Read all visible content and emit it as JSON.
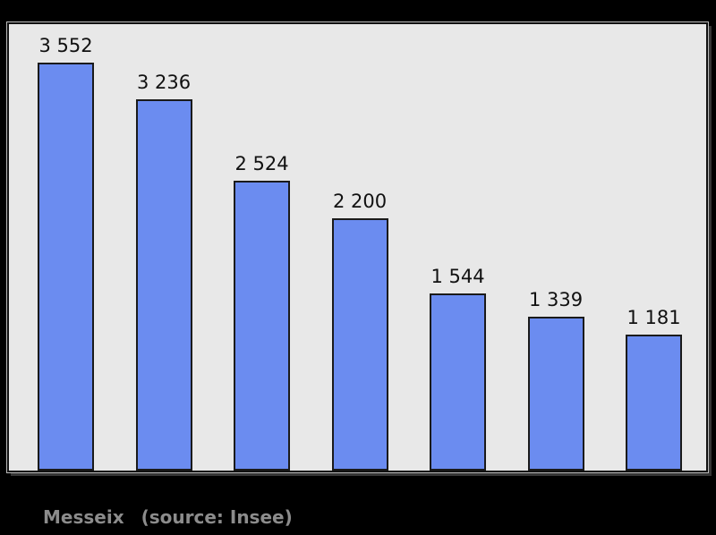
{
  "chart_data": {
    "type": "bar",
    "title": "",
    "xlabel": "",
    "ylabel": "",
    "categories": [
      "",
      "",
      "",
      "",
      "",
      "",
      ""
    ],
    "values": [
      3552,
      3236,
      2524,
      2200,
      1544,
      1339,
      1181
    ],
    "value_labels": [
      "3 552",
      "3 236",
      "2 524",
      "2 200",
      "1 544",
      "1 339",
      "1 181"
    ],
    "ylim": [
      0,
      3888
    ],
    "grid": false,
    "legend": false,
    "axes_visible": false,
    "bar_color": "#6b8cf0",
    "bar_border_color": "#1a1a1a",
    "panel_background": "#e8e8e8",
    "page_background": "#000000",
    "label_color": "#111111"
  },
  "caption": {
    "name": "Messeix",
    "source": "(source: Insee)",
    "color": "#8c8c8c"
  }
}
